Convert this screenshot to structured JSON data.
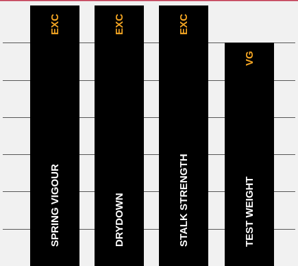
{
  "chart_data": {
    "type": "bar",
    "orientation": "vertical",
    "categories": [
      "SPRING VIGOUR",
      "DRYDOWN",
      "STALK STRENGTH",
      "TEST WEIGHT"
    ],
    "values": [
      "EXC",
      "EXC",
      "EXC",
      "VG"
    ],
    "scale_levels": 7,
    "level_values": [
      7,
      7,
      7,
      6
    ],
    "grid": true,
    "legend": "none",
    "colors": {
      "background": "#f1f1f1",
      "bar": "#000000",
      "bar_text": "#ffffff",
      "rating_text": "#f5a623",
      "grid": "#555555",
      "top_rule": "#c0314a"
    }
  }
}
